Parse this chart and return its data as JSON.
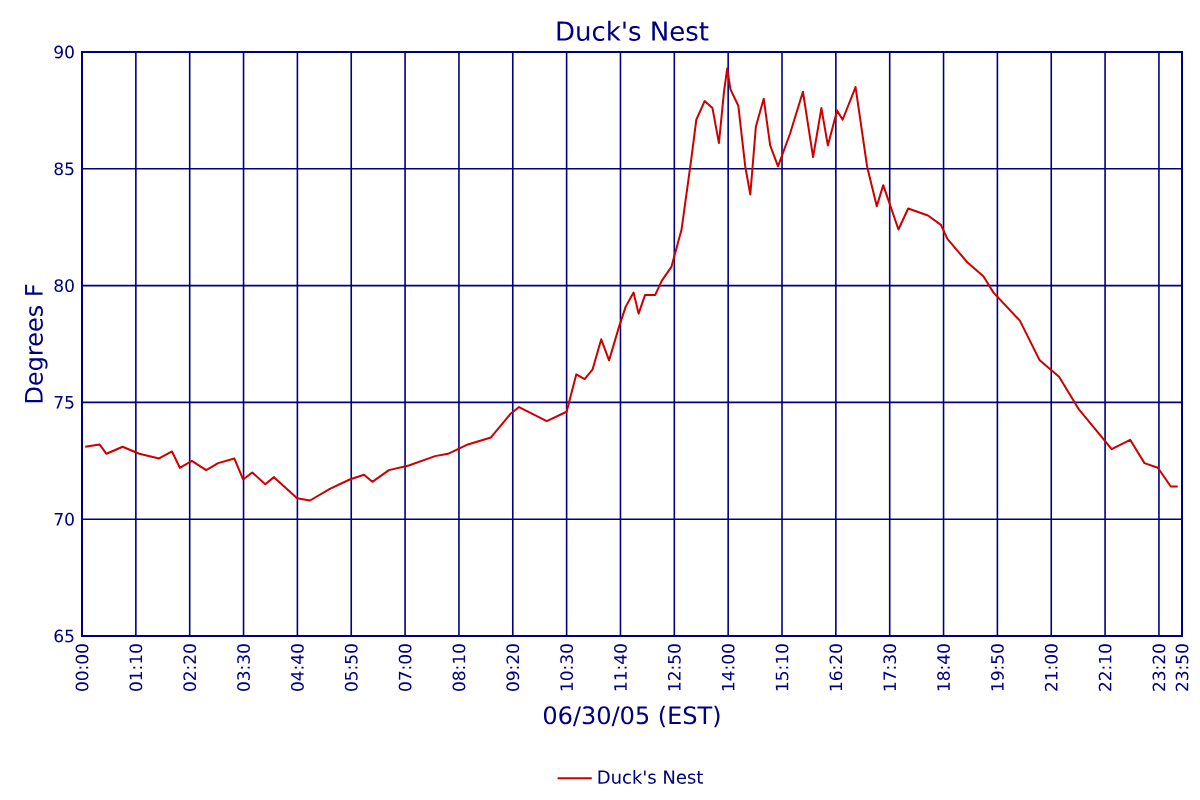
{
  "chart_data": {
    "type": "line",
    "title": "Duck's Nest",
    "xlabel": "06/30/05 (EST)",
    "ylabel": "Degrees F",
    "xlim": [
      0,
      23.8333
    ],
    "ylim": [
      65,
      90
    ],
    "xticks": [
      {
        "value": 0,
        "label": "00:00"
      },
      {
        "value": 1.1667,
        "label": "01:10"
      },
      {
        "value": 2.3333,
        "label": "02:20"
      },
      {
        "value": 3.5,
        "label": "03:30"
      },
      {
        "value": 4.6667,
        "label": "04:40"
      },
      {
        "value": 5.8333,
        "label": "05:50"
      },
      {
        "value": 7,
        "label": "07:00"
      },
      {
        "value": 8.1667,
        "label": "08:10"
      },
      {
        "value": 9.3333,
        "label": "09:20"
      },
      {
        "value": 10.5,
        "label": "10:30"
      },
      {
        "value": 11.6667,
        "label": "11:40"
      },
      {
        "value": 12.8333,
        "label": "12:50"
      },
      {
        "value": 14,
        "label": "14:00"
      },
      {
        "value": 15.1667,
        "label": "15:10"
      },
      {
        "value": 16.3333,
        "label": "16:20"
      },
      {
        "value": 17.5,
        "label": "17:30"
      },
      {
        "value": 18.6667,
        "label": "18:40"
      },
      {
        "value": 19.8333,
        "label": "19:50"
      },
      {
        "value": 21,
        "label": "21:00"
      },
      {
        "value": 22.1667,
        "label": "22:10"
      },
      {
        "value": 23.3333,
        "label": "23:20"
      },
      {
        "value": 23.8333,
        "label": "23:50"
      }
    ],
    "yticks": [
      65,
      70,
      75,
      80,
      85,
      90
    ],
    "grid": true,
    "legend": "bottom",
    "marker": "none",
    "line_style": "solid",
    "series": [
      {
        "name": "Duck's Nest",
        "color": "#cc0000",
        "x": [
          0.07,
          0.38,
          0.53,
          0.88,
          1.24,
          1.67,
          1.95,
          2.12,
          2.38,
          2.69,
          2.95,
          3.3,
          3.49,
          3.69,
          3.97,
          4.16,
          4.66,
          4.94,
          5.37,
          5.8,
          6.11,
          6.29,
          6.65,
          7.08,
          7.65,
          7.93,
          8.36,
          8.86,
          9.28,
          9.47,
          10.07,
          10.5,
          10.71,
          10.89,
          11.06,
          11.25,
          11.42,
          11.63,
          11.78,
          11.95,
          12.06,
          12.2,
          12.42,
          12.56,
          12.77,
          12.99,
          13.2,
          13.31,
          13.49,
          13.66,
          13.8,
          13.91,
          13.98,
          14.05,
          14.22,
          14.37,
          14.48,
          14.6,
          14.77,
          14.91,
          15.08,
          15.34,
          15.62,
          15.84,
          16.02,
          16.16,
          16.36,
          16.48,
          16.76,
          17.01,
          17.22,
          17.36,
          17.69,
          17.9,
          18.33,
          18.61,
          18.75,
          19.18,
          19.53,
          19.75,
          20.32,
          20.75,
          21.17,
          21.6,
          22.31,
          22.71,
          23.02,
          23.31,
          23.59,
          23.74
        ],
        "values": [
          73.1,
          73.2,
          72.8,
          73.1,
          72.8,
          72.6,
          72.9,
          72.2,
          72.5,
          72.1,
          72.4,
          72.6,
          71.7,
          72.0,
          71.5,
          71.8,
          70.9,
          70.8,
          71.3,
          71.7,
          71.9,
          71.6,
          72.1,
          72.3,
          72.7,
          72.8,
          73.2,
          73.5,
          74.5,
          74.8,
          74.2,
          74.6,
          76.2,
          76.0,
          76.4,
          77.7,
          76.8,
          78.2,
          79.1,
          79.7,
          78.8,
          79.6,
          79.6,
          80.2,
          80.8,
          82.4,
          85.4,
          87.1,
          87.9,
          87.6,
          86.1,
          88.3,
          89.3,
          88.4,
          87.7,
          85.1,
          83.9,
          86.8,
          88.0,
          86.0,
          85.1,
          86.5,
          88.3,
          85.5,
          87.6,
          86.0,
          87.5,
          87.1,
          88.5,
          85.1,
          83.4,
          84.3,
          82.4,
          83.3,
          83.0,
          82.6,
          82.0,
          81.0,
          80.4,
          79.7,
          78.5,
          76.8,
          76.1,
          74.7,
          73.0,
          73.4,
          72.4,
          72.2,
          71.4,
          71.4
        ]
      }
    ]
  }
}
